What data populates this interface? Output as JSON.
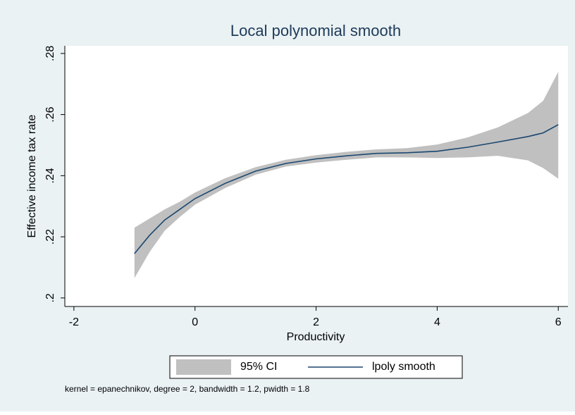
{
  "chart_data": {
    "type": "lpoly",
    "title": "Local polynomial smooth",
    "xlabel": "Productivity",
    "ylabel": "Effective income tax rate",
    "note": "kernel = epanechnikov, degree = 2, bandwidth = 1.2, pwidth = 1.8",
    "x": [
      -1,
      -0.75,
      -0.5,
      -0.25,
      0,
      0.5,
      1,
      1.5,
      2,
      2.5,
      3,
      3.5,
      4,
      4.5,
      5,
      5.5,
      5.75,
      6
    ],
    "series": [
      {
        "name": "95% CI",
        "color": "#c0c0c0",
        "lower": [
          0.2065,
          0.215,
          0.222,
          0.2265,
          0.2305,
          0.236,
          0.2403,
          0.243,
          0.2443,
          0.2452,
          0.246,
          0.246,
          0.2458,
          0.246,
          0.2465,
          0.245,
          0.2425,
          0.239
        ],
        "upper": [
          0.223,
          0.226,
          0.229,
          0.2315,
          0.2345,
          0.2392,
          0.2428,
          0.2452,
          0.2467,
          0.2478,
          0.2486,
          0.249,
          0.2502,
          0.2525,
          0.2558,
          0.2605,
          0.2645,
          0.274
        ]
      },
      {
        "name": "lpoly smooth",
        "color": "#1a476f",
        "values": [
          0.2145,
          0.2205,
          0.2255,
          0.229,
          0.2325,
          0.2375,
          0.2415,
          0.244,
          0.2455,
          0.2465,
          0.2473,
          0.2475,
          0.248,
          0.2493,
          0.251,
          0.2528,
          0.254,
          0.2567
        ]
      }
    ],
    "xlim": [
      -2.15,
      6.16
    ],
    "xticks": [
      -2,
      0,
      2,
      4,
      6
    ],
    "ylim": [
      0.1972,
      0.2825
    ],
    "yticks": [
      {
        "value": 0.2,
        "label": ".2"
      },
      {
        "value": 0.22,
        "label": ".22"
      },
      {
        "value": 0.24,
        "label": ".24"
      },
      {
        "value": 0.26,
        "label": ".26"
      },
      {
        "value": 0.28,
        "label": ".28"
      }
    ]
  }
}
